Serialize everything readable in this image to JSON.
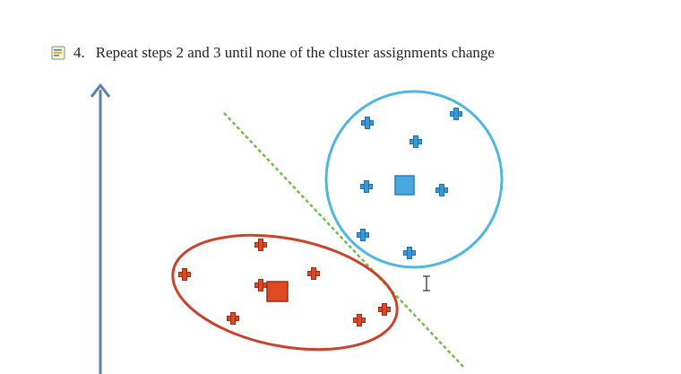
{
  "document": {
    "step_number": "4.",
    "step_text": "Repeat steps 2 and 3 until none of the cluster assignments change"
  },
  "figure": {
    "colors": {
      "axis": "#5b7fae",
      "divider": "#6fbf4a",
      "cluster_blue": "#4fb6e0",
      "point_blue": "#3a9ad8",
      "cluster_red": "#c8432b",
      "point_red": "#d94c2a"
    },
    "blue_cluster": {
      "point_icon": "plus-icon",
      "centroid_icon": "square-icon"
    },
    "red_cluster": {
      "point_icon": "plus-icon",
      "centroid_icon": "square-icon"
    }
  },
  "icons": {
    "note": "note-icon",
    "cursor": "ibeam-cursor-icon"
  }
}
